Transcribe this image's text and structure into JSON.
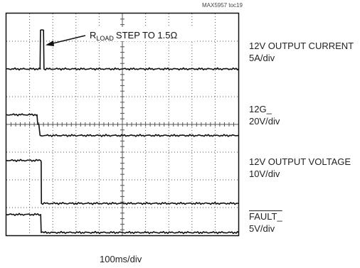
{
  "figure_ref": "MAX5957 toc19",
  "annotation": {
    "prefix": "R",
    "subscript": "LOAD",
    "text": "STEP TO 1.5Ω"
  },
  "time_scale": "100ms/div",
  "channels": [
    {
      "name": "12V OUTPUT CURRENT",
      "scale": "5A/div"
    },
    {
      "name": "12G_",
      "scale": "20V/div"
    },
    {
      "name": "12V OUTPUT VOLTAGE",
      "scale": "10V/div"
    },
    {
      "name": "FAULT_",
      "scale": "5V/div",
      "overbar": true
    }
  ],
  "colors": {
    "trace": "#111111",
    "grid": "#555555",
    "frame": "#111111"
  },
  "chart_data": {
    "type": "line",
    "title": "",
    "xlabel": "100ms/div",
    "ylabel": "",
    "x_divisions": 10,
    "y_divisions": 8,
    "xlim": [
      0,
      10
    ],
    "ylim": [
      0,
      8
    ],
    "grid": true,
    "series": [
      {
        "name": "12V OUTPUT CURRENT",
        "x": [
          0,
          1.45,
          1.47,
          1.6,
          1.62,
          10
        ],
        "y": [
          6.0,
          6.0,
          7.4,
          7.4,
          6.0,
          6.0
        ]
      },
      {
        "name": "12G_",
        "x": [
          0,
          1.32,
          1.35,
          1.4,
          1.45,
          1.47,
          10
        ],
        "y": [
          4.35,
          4.35,
          4.0,
          4.0,
          3.6,
          3.6,
          3.6
        ]
      },
      {
        "name": "12V OUTPUT VOLTAGE",
        "x": [
          0,
          1.48,
          1.5,
          1.51,
          10
        ],
        "y": [
          2.7,
          2.7,
          2.65,
          1.15,
          1.15
        ]
      },
      {
        "name": "FAULT_",
        "x": [
          0,
          1.48,
          1.5,
          10
        ],
        "y": [
          0.75,
          0.75,
          0.1,
          0.1
        ]
      }
    ]
  }
}
